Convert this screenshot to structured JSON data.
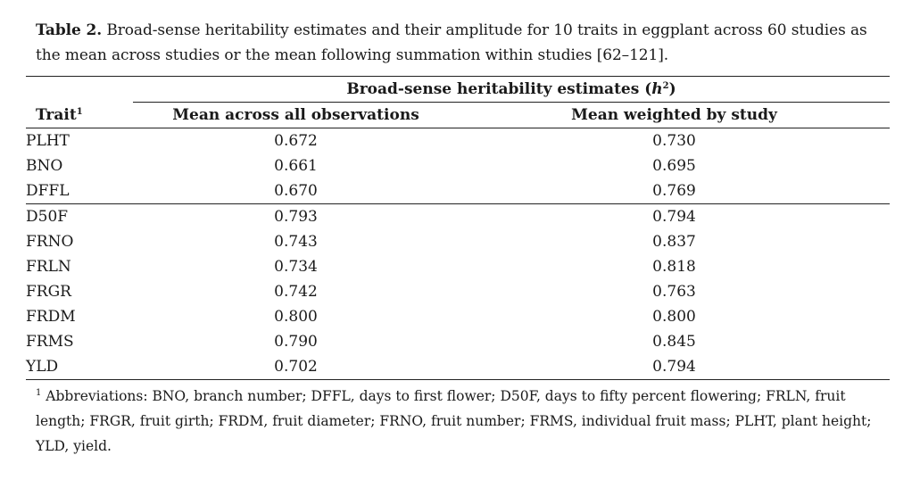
{
  "caption": {
    "label": "Table 2.",
    "text": " Broad-sense heritability estimates and their amplitude for 10 traits in eggplant across 60 studies as the mean across studies or the mean following summation within studies [62–121]."
  },
  "table": {
    "group_header": "Broad-sense heritability estimates (",
    "group_header_var": "h",
    "group_header_sup": "2",
    "group_header_end": ")",
    "columns": {
      "trait": "Trait",
      "trait_sup": "1",
      "mean_all": "Mean across all observations",
      "mean_weighted": "Mean weighted by study"
    },
    "rows": [
      {
        "trait": "PLHT",
        "mean_all": "0.672",
        "mean_weighted": "0.730"
      },
      {
        "trait": "BNO",
        "mean_all": "0.661",
        "mean_weighted": "0.695"
      },
      {
        "trait": "DFFL",
        "mean_all": "0.670",
        "mean_weighted": "0.769"
      },
      {
        "trait": "D50F",
        "mean_all": "0.793",
        "mean_weighted": "0.794"
      },
      {
        "trait": "FRNO",
        "mean_all": "0.743",
        "mean_weighted": "0.837"
      },
      {
        "trait": "FRLN",
        "mean_all": "0.734",
        "mean_weighted": "0.818"
      },
      {
        "trait": "FRGR",
        "mean_all": "0.742",
        "mean_weighted": "0.763"
      },
      {
        "trait": "FRDM",
        "mean_all": "0.800",
        "mean_weighted": "0.800"
      },
      {
        "trait": "FRMS",
        "mean_all": "0.790",
        "mean_weighted": "0.845"
      },
      {
        "trait": "YLD",
        "mean_all": "0.702",
        "mean_weighted": "0.794"
      }
    ]
  },
  "footnote": {
    "marker": "1",
    "text": " Abbreviations: BNO, branch number; DFFL, days to first flower; D50F, days to fifty percent flowering; FRLN, fruit length; FRGR, fruit girth; FRDM, fruit diameter; FRNO, fruit number; FRMS, individual fruit mass; PLHT, plant height; YLD, yield."
  }
}
